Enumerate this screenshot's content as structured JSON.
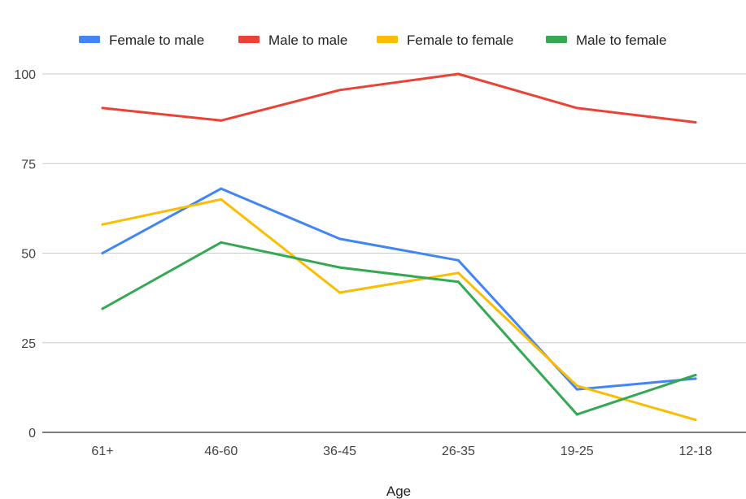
{
  "chart_data": {
    "type": "line",
    "title": "",
    "xlabel": "Age",
    "ylabel": "",
    "categories": [
      "61+",
      "46-60",
      "36-45",
      "26-35",
      "19-25",
      "12-18"
    ],
    "ylim": [
      0,
      100
    ],
    "yticks": [
      0,
      25,
      50,
      75,
      100
    ],
    "grid": true,
    "legend_position": "top",
    "series": [
      {
        "name": "Female to male",
        "color": "#4285F4",
        "values": [
          50,
          68,
          54,
          48,
          12,
          15
        ]
      },
      {
        "name": "Male to male",
        "color": "#EA4335",
        "values": [
          90.5,
          87,
          95.5,
          100,
          90.5,
          86.5
        ]
      },
      {
        "name": "Female to female",
        "color": "#FBBC04",
        "values": [
          58,
          65,
          39,
          44.5,
          13,
          3.5
        ]
      },
      {
        "name": "Male to female",
        "color": "#34A853",
        "values": [
          34.5,
          53,
          46,
          42,
          5,
          16
        ]
      }
    ]
  }
}
